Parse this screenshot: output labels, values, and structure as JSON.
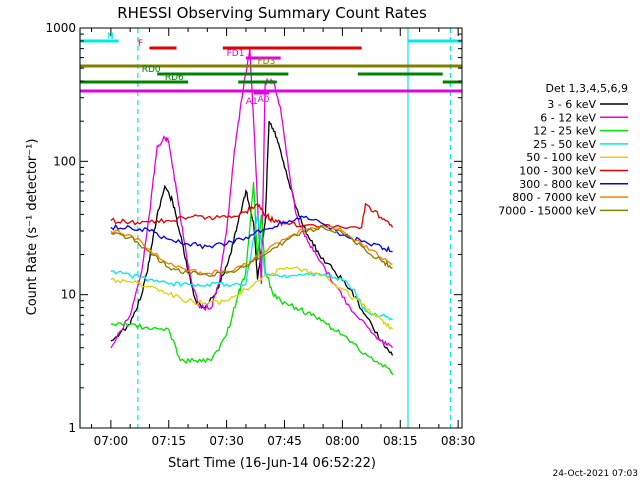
{
  "chart_data": {
    "type": "line",
    "title": "RHESSI Observing Summary Count Rates",
    "xlabel": "Start Time (16-Jun-14 06:52:22)",
    "ylabel": "Count Rate (s⁻¹ detector⁻¹)",
    "footer": "24-Oct-2021 07:03",
    "xlim": [
      "06:52",
      "08:31"
    ],
    "ylim": [
      1,
      1000
    ],
    "yscale": "log",
    "x_ticks": [
      "07:00",
      "07:15",
      "07:30",
      "07:45",
      "08:00",
      "08:15",
      "08:30"
    ],
    "y_ticks": [
      "1",
      "10",
      "100",
      "1000"
    ],
    "legend": {
      "title": "Det 1,3,4,5,6,9",
      "placement": "right",
      "entries": [
        {
          "label": "3 - 6 keV",
          "color": "#000000"
        },
        {
          "label": "6 - 12 keV",
          "color": "#e000e0"
        },
        {
          "label": "12 - 25 keV",
          "color": "#00e000"
        },
        {
          "label": "25 - 50 keV",
          "color": "#00e8e8"
        },
        {
          "label": "50 - 100 keV",
          "color": "#e0d000"
        },
        {
          "label": "100 - 300 keV",
          "color": "#e00000"
        },
        {
          "label": "300 - 800 keV",
          "color": "#0000e0"
        },
        {
          "label": "800 - 7000 keV",
          "color": "#ff7f00"
        },
        {
          "label": "7000 - 15000 keV",
          "color": "#808000"
        }
      ]
    },
    "flag_bars": [
      {
        "label": "N",
        "color": "#00e8e8",
        "segments": [
          [
            "06:52",
            "07:02"
          ],
          [
            "08:17",
            "08:31"
          ]
        ]
      },
      {
        "label": "F",
        "color": "#e00000",
        "segments": [
          [
            "07:10",
            "07:17"
          ],
          [
            "07:29",
            "08:05"
          ]
        ]
      },
      {
        "label": "FD1",
        "color": "#e000e0",
        "segments": [
          [
            "07:35",
            "07:44"
          ]
        ]
      },
      {
        "label": "FD3",
        "color": "#808000",
        "segments": [
          [
            "06:52",
            "08:31"
          ]
        ]
      },
      {
        "label": "RD0",
        "color": "#008000",
        "segments": [
          [
            "07:12",
            "07:46"
          ],
          [
            "08:04",
            "08:26"
          ]
        ]
      },
      {
        "label": "RD6",
        "color": "#008000",
        "segments": [
          [
            "06:52",
            "07:20"
          ],
          [
            "07:33",
            "07:43"
          ],
          [
            "08:26",
            "08:31"
          ]
        ]
      },
      {
        "label": "A1",
        "color": "#e000e0",
        "segments": [
          [
            "07:37",
            "07:41"
          ]
        ]
      },
      {
        "label": "A0",
        "color": "#e000e0",
        "segments": [
          [
            "06:52",
            "08:31"
          ]
        ]
      }
    ],
    "series": [
      {
        "name": "3 - 6 keV",
        "color": "#000000",
        "x": [
          "07:00",
          "07:05",
          "07:08",
          "07:10",
          "07:12",
          "07:14",
          "07:16",
          "07:18",
          "07:20",
          "07:22",
          "07:24",
          "07:27",
          "07:29",
          "07:31",
          "07:33",
          "07:35",
          "07:37",
          "07:38",
          "07:40",
          "07:41",
          "07:43",
          "07:45",
          "07:48",
          "07:51",
          "07:54",
          "07:58",
          "08:02",
          "08:06",
          "08:10",
          "08:13"
        ],
        "y": [
          4.5,
          6,
          10,
          18,
          40,
          65,
          50,
          28,
          15,
          9,
          8,
          10,
          14,
          20,
          35,
          60,
          35,
          13,
          35,
          200,
          150,
          90,
          45,
          28,
          20,
          15,
          11,
          7,
          4.5,
          3.5
        ]
      },
      {
        "name": "6 - 12 keV",
        "color": "#e000e0",
        "x": [
          "07:00",
          "07:05",
          "07:08",
          "07:10",
          "07:12",
          "07:14",
          "07:15",
          "07:17",
          "07:19",
          "07:21",
          "07:23",
          "07:26",
          "07:28",
          "07:30",
          "07:32",
          "07:34",
          "07:36",
          "07:37",
          "07:39",
          "07:40",
          "07:42",
          "07:44",
          "07:46",
          "07:48",
          "07:51",
          "07:54",
          "07:58",
          "08:02",
          "08:06",
          "08:10",
          "08:13"
        ],
        "y": [
          4,
          7,
          15,
          40,
          130,
          150,
          140,
          60,
          25,
          12,
          8,
          8,
          12,
          30,
          120,
          300,
          700,
          200,
          12,
          400,
          400,
          250,
          90,
          40,
          25,
          18,
          12,
          8,
          6,
          4.5,
          4
        ]
      },
      {
        "name": "12 - 25 keV",
        "color": "#00e000",
        "x": [
          "07:00",
          "07:05",
          "07:10",
          "07:15",
          "07:18",
          "07:22",
          "07:26",
          "07:30",
          "07:33",
          "07:35",
          "07:37",
          "07:38",
          "07:39",
          "07:40",
          "07:42",
          "07:44",
          "07:48",
          "07:52",
          "07:56",
          "08:00",
          "08:04",
          "08:08",
          "08:12",
          "08:13"
        ],
        "y": [
          6,
          6,
          5.5,
          5.5,
          3.2,
          3.2,
          3.2,
          5,
          10,
          15,
          70,
          18,
          40,
          15,
          10,
          9,
          8,
          7,
          6,
          5,
          4,
          3.2,
          2.8,
          2.5
        ]
      },
      {
        "name": "25 - 50 keV",
        "color": "#00e8e8",
        "x": [
          "07:00",
          "07:05",
          "07:10",
          "07:15",
          "07:20",
          "07:25",
          "07:30",
          "07:35",
          "07:38",
          "07:40",
          "07:45",
          "07:50",
          "07:55",
          "08:00",
          "08:03",
          "08:06",
          "08:10",
          "08:13"
        ],
        "y": [
          15,
          14,
          13,
          12,
          12,
          12,
          12,
          12,
          40,
          14,
          14,
          14,
          14,
          13,
          11,
          7.5,
          7,
          6.5
        ]
      },
      {
        "name": "50 - 100 keV",
        "color": "#e0d000",
        "x": [
          "07:00",
          "07:05",
          "07:10",
          "07:15",
          "07:20",
          "07:25",
          "07:30",
          "07:35",
          "07:40",
          "07:45",
          "07:50",
          "07:55",
          "08:00",
          "08:05",
          "08:10",
          "08:13"
        ],
        "y": [
          13,
          12.5,
          11.5,
          10,
          9,
          8.5,
          9,
          11,
          14,
          15.5,
          15.5,
          14,
          11,
          8.5,
          6.5,
          5.5
        ]
      },
      {
        "name": "100 - 300 keV",
        "color": "#e00000",
        "x": [
          "07:00",
          "07:05",
          "07:10",
          "07:15",
          "07:20",
          "07:25",
          "07:30",
          "07:35",
          "07:38",
          "07:40",
          "07:42",
          "07:45",
          "07:50",
          "08:00",
          "08:05",
          "08:06",
          "08:10",
          "08:13"
        ],
        "y": [
          36,
          35,
          35,
          36,
          38,
          38,
          38,
          42,
          48,
          40,
          36,
          34,
          33,
          32,
          32,
          48,
          38,
          32
        ]
      },
      {
        "name": "300 - 800 keV",
        "color": "#0000e0",
        "x": [
          "07:00",
          "07:05",
          "07:10",
          "07:15",
          "07:20",
          "07:25",
          "07:30",
          "07:35",
          "07:40",
          "07:45",
          "07:50",
          "07:55",
          "08:00",
          "08:05",
          "08:10",
          "08:13"
        ],
        "y": [
          32,
          32,
          30,
          26,
          24,
          23,
          24,
          27,
          31,
          35,
          38,
          34,
          28,
          25,
          23,
          21
        ]
      },
      {
        "name": "800 - 7000 keV",
        "color": "#ff7f00",
        "x": [
          "07:00",
          "07:05",
          "07:10",
          "07:15",
          "07:20",
          "07:25",
          "07:30",
          "07:35",
          "07:40",
          "07:45",
          "07:50",
          "07:55",
          "08:00",
          "08:05",
          "08:10",
          "08:13"
        ],
        "y": [
          30,
          28,
          22,
          17,
          15,
          14.5,
          15,
          17,
          21,
          26,
          31,
          33,
          30,
          24,
          19,
          17
        ]
      },
      {
        "name": "7000 - 15000 keV",
        "color": "#808000",
        "x": [
          "07:00",
          "07:05",
          "07:10",
          "07:15",
          "07:20",
          "07:25",
          "07:30",
          "07:35",
          "07:40",
          "07:45",
          "07:50",
          "07:55",
          "08:00",
          "08:05",
          "08:10",
          "08:13"
        ],
        "y": [
          29,
          27,
          21,
          16,
          14.5,
          14,
          14.5,
          16.5,
          20,
          25,
          30,
          32,
          29,
          23,
          18,
          16
        ]
      }
    ],
    "vertical_markers": [
      {
        "x": "06:52",
        "color": "#00e8e8",
        "style": "solid"
      },
      {
        "x": "07:07",
        "color": "#00e8e8",
        "style": "dashed"
      },
      {
        "x": "08:17",
        "color": "#00e8e8",
        "style": "solid"
      },
      {
        "x": "08:28",
        "color": "#00e8e8",
        "style": "dashed"
      }
    ]
  }
}
